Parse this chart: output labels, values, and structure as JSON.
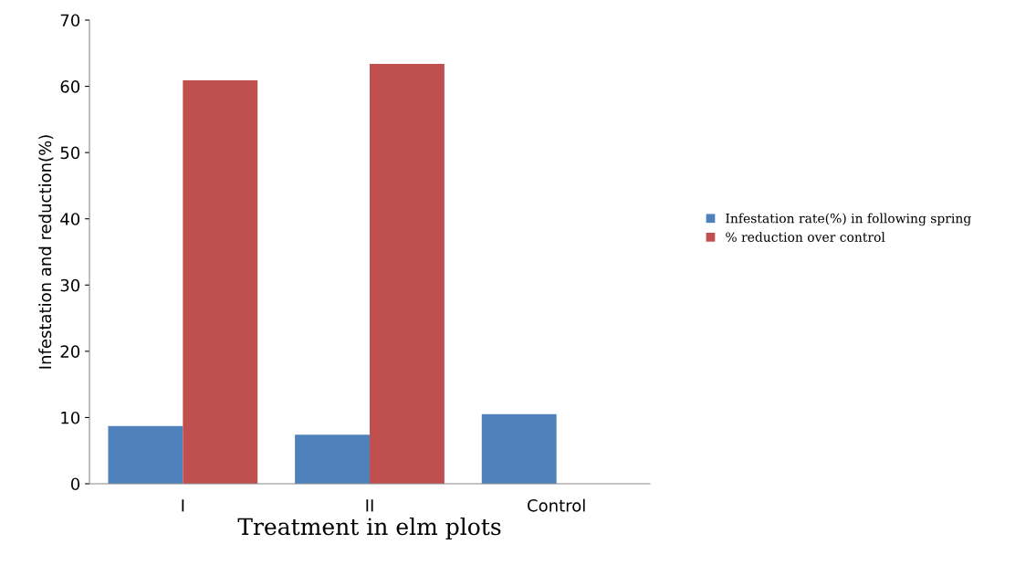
{
  "chart_data": {
    "type": "bar",
    "xlabel": "Treatment in elm plots",
    "ylabel": "Infestation and reduction(%)",
    "categories": [
      "I",
      "II",
      "Control"
    ],
    "series": [
      {
        "name": "Infestation rate(%) in following spring",
        "color": "#4f81bd",
        "values": [
          8.7,
          7.4,
          10.5
        ]
      },
      {
        "name": "% reduction over control",
        "color": "#c0504d",
        "values": [
          60.9,
          63.4,
          null
        ]
      }
    ],
    "ylim": [
      0,
      70
    ],
    "yticks": [
      0,
      10,
      20,
      30,
      40,
      50,
      60,
      70
    ],
    "grid": false,
    "legend": "right"
  }
}
